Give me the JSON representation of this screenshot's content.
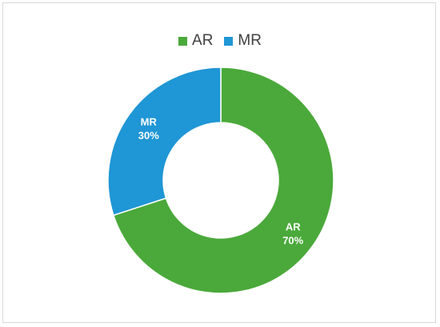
{
  "chart_data": {
    "type": "pie",
    "donut": true,
    "legend_position": "top",
    "categories": [
      "AR",
      "MR"
    ],
    "values": [
      70,
      30
    ],
    "labels": [
      "70%",
      "30%"
    ],
    "colors": [
      "#4aa93a",
      "#1f96d5"
    ]
  }
}
